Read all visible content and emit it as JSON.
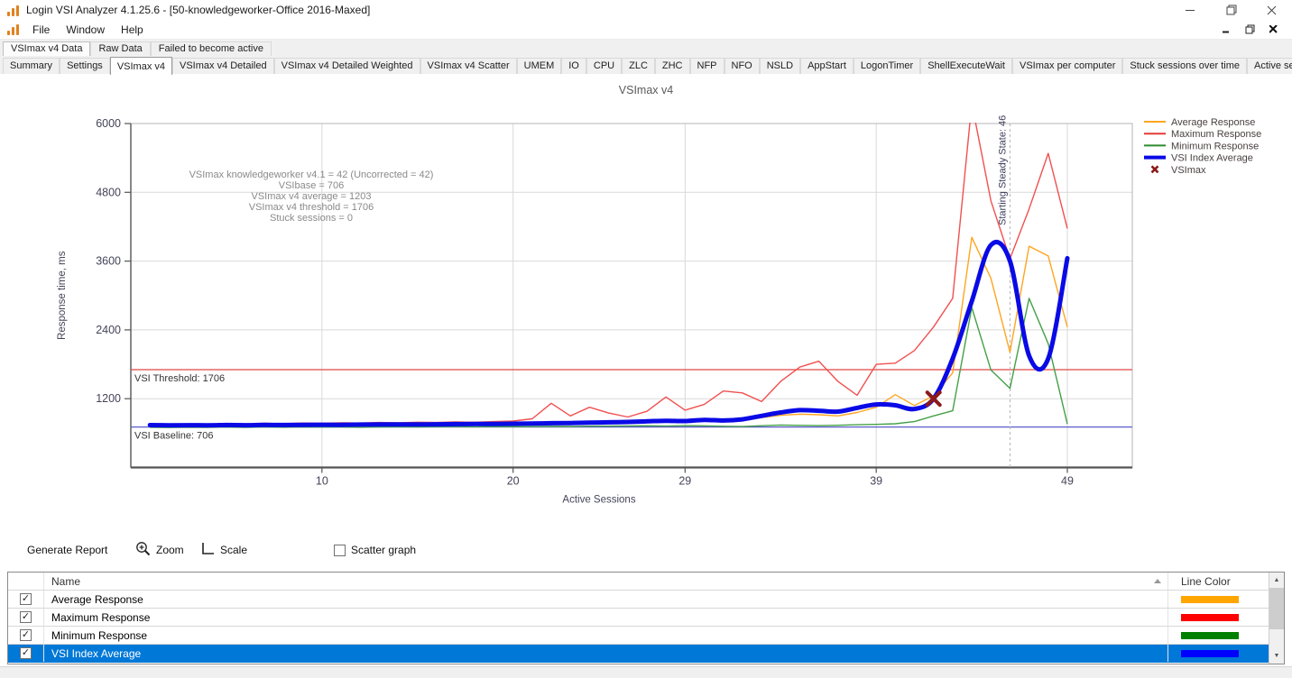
{
  "window": {
    "title": "Login VSI Analyzer 4.1.25.6 - [50-knowledgeworker-Office 2016-Maxed]",
    "menu": [
      "File",
      "Window",
      "Help"
    ]
  },
  "icons": {
    "app": "bar-chart",
    "minimize": "minimize-line",
    "restore": "overlapping-squares",
    "close": "x-cross",
    "scroll_up": "▲",
    "scroll_down": "▼",
    "check": "✓"
  },
  "tabs_top": [
    "VSImax v4 Data",
    "Raw Data",
    "Failed to become active"
  ],
  "tabs_top_active": "VSImax v4 Data",
  "tabs_main": [
    "Summary",
    "Settings",
    "VSImax v4",
    "VSImax v4 Detailed",
    "VSImax v4 Detailed Weighted",
    "VSImax v4 Scatter",
    "UMEM",
    "IO",
    "CPU",
    "ZLC",
    "ZHC",
    "NFP",
    "NFO",
    "NSLD",
    "AppStart",
    "LogonTimer",
    "ShellExecuteWait",
    "VSImax per computer",
    "Stuck sessions over time",
    "Active sessions over time"
  ],
  "tabs_main_active": "VSImax v4",
  "chart_data": {
    "type": "line",
    "title": "VSImax v4",
    "xlabel": "Active Sessions",
    "ylabel": "Response time, ms",
    "xticks": [
      10,
      20,
      29,
      39,
      49
    ],
    "yticks": [
      1200,
      2400,
      3600,
      4800,
      6000
    ],
    "xlim": [
      0,
      52
    ],
    "ylim": [
      0,
      6000
    ],
    "grid": true,
    "legend_position": "top-right",
    "annotation": [
      "VSImax knowledgeworker v4.1 = 42 (Uncorrected = 42)",
      "VSIbase = 706",
      "VSImax v4 average = 1203",
      "VSImax v4 threshold = 1706",
      "Stuck sessions = 0"
    ],
    "threshold_line": {
      "label": "VSI Threshold: 1706",
      "value": 1706,
      "color": "#e04848"
    },
    "baseline_line": {
      "label": "VSI Baseline: 706",
      "value": 706,
      "color": "#5c5ccc"
    },
    "steady_state_line": {
      "label": "Starting Steady State: 46",
      "x": 46,
      "color": "#b4b4b4"
    },
    "vsimax_marker": {
      "label": "VSImax",
      "x": 42,
      "y": 1200,
      "color": "#8b1a1a"
    },
    "x": [
      1,
      2,
      3,
      4,
      5,
      6,
      7,
      8,
      9,
      10,
      11,
      12,
      13,
      14,
      15,
      16,
      17,
      18,
      19,
      20,
      21,
      22,
      23,
      24,
      25,
      26,
      27,
      28,
      29,
      30,
      31,
      32,
      33,
      34,
      35,
      36,
      37,
      38,
      39,
      40,
      41,
      42,
      43,
      44,
      45,
      46,
      47,
      48,
      49
    ],
    "series": [
      {
        "name": "Maximum Response",
        "color": "#f15050",
        "width": 1.4,
        "smooth": false,
        "values": [
          755,
          750,
          760,
          755,
          765,
          760,
          770,
          765,
          775,
          770,
          780,
          775,
          785,
          780,
          790,
          785,
          795,
          790,
          800,
          810,
          850,
          1120,
          900,
          1050,
          950,
          880,
          980,
          1230,
          1000,
          1100,
          1334,
          1300,
          1150,
          1500,
          1750,
          1855,
          1500,
          1260,
          1800,
          1820,
          2040,
          2450,
          2950,
          6350,
          4650,
          3640,
          4510,
          5480,
          4170
        ]
      },
      {
        "name": "Average Response",
        "color": "#ffa520",
        "width": 1.4,
        "smooth": false,
        "values": [
          738,
          735,
          740,
          737,
          742,
          740,
          744,
          742,
          746,
          748,
          746,
          750,
          752,
          754,
          752,
          756,
          758,
          760,
          762,
          764,
          768,
          775,
          772,
          780,
          785,
          790,
          800,
          795,
          810,
          805,
          820,
          830,
          870,
          910,
          930,
          920,
          900,
          960,
          1050,
          1270,
          1080,
          1250,
          1650,
          4015,
          3300,
          2010,
          3860,
          3690,
          2450
        ]
      },
      {
        "name": "Minimum Response",
        "color": "#44a048",
        "width": 1.4,
        "smooth": false,
        "values": [
          700,
          696,
          702,
          698,
          704,
          700,
          706,
          702,
          708,
          704,
          706,
          702,
          708,
          710,
          706,
          712,
          714,
          710,
          716,
          712,
          714,
          718,
          715,
          720,
          722,
          725,
          728,
          722,
          730,
          726,
          718,
          714,
          728,
          740,
          735,
          730,
          736,
          746,
          752,
          762,
          800,
          900,
          990,
          2790,
          1700,
          1380,
          2950,
          2160,
          760
        ]
      },
      {
        "name": "VSI Index Average",
        "color": "#0a0ae6",
        "width": 5,
        "smooth": true,
        "values": [
          740,
          735,
          738,
          736,
          740,
          738,
          742,
          740,
          744,
          746,
          744,
          748,
          750,
          752,
          750,
          754,
          756,
          758,
          760,
          762,
          766,
          772,
          776,
          782,
          788,
          795,
          805,
          815,
          810,
          830,
          820,
          840,
          900,
          960,
          1000,
          990,
          975,
          1040,
          1100,
          1085,
          1020,
          1200,
          1900,
          2900,
          3880,
          3600,
          1950,
          1900,
          3650
        ]
      }
    ],
    "legend": [
      {
        "label": "Average Response",
        "color": "#ffa520",
        "type": "line"
      },
      {
        "label": "Maximum Response",
        "color": "#e53935",
        "type": "line"
      },
      {
        "label": "Minimum Response",
        "color": "#2e8b2e",
        "type": "line"
      },
      {
        "label": "VSI Index Average",
        "color": "#0a0ae6",
        "type": "thick-line"
      },
      {
        "label": "VSImax",
        "color": "#8b1a1a",
        "type": "x-marker"
      }
    ]
  },
  "toolbar": {
    "generate_report": "Generate Report",
    "zoom": "Zoom",
    "scale": "Scale",
    "scatter_graph": "Scatter graph",
    "scatter_checked": false
  },
  "table": {
    "columns": [
      "Name",
      "Line Color"
    ],
    "rows": [
      {
        "name": "Average Response",
        "color": "#ffa500",
        "checked": true,
        "selected": false
      },
      {
        "name": "Maximum Response",
        "color": "#ff0000",
        "checked": true,
        "selected": false
      },
      {
        "name": "Minimum Response",
        "color": "#008000",
        "checked": true,
        "selected": false
      },
      {
        "name": "VSI Index Average",
        "color": "#0000ff",
        "checked": true,
        "selected": true
      }
    ]
  }
}
